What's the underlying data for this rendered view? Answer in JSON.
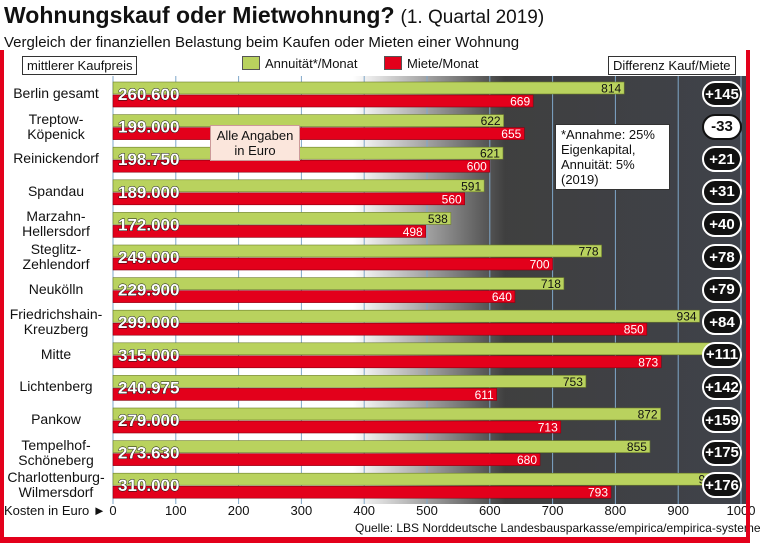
{
  "title": "Wohnungskauf oder Mietwohnung?",
  "title_period": "(1. Quartal  2019)",
  "subtitle": "Vergleich der finanziellen Belastung beim Kaufen oder Mieten einer Wohnung",
  "label_kaufpreis": "mittlerer Kaufpreis",
  "label_differenz": "Differenz Kauf/Miete",
  "note_alle": "Alle Angaben in Euro",
  "note_annahme": "*Annahme: 25% Eigenkapital, Annuität: 5% (2019)",
  "xaxis_title": "Kosten in Euro ►",
  "source": "Quelle: LBS Norddeutsche Landesbausparkasse/empirica/empirica-systeme",
  "colors": {
    "annuity": "#b9d25e",
    "rent": "#e3001b",
    "frame": "#e3001b",
    "badge": "#111111"
  },
  "chart_data": {
    "type": "bar",
    "orientation": "horizontal",
    "categories": [
      "Berlin gesamt",
      "Treptow-Köpenick",
      "Reinickendorf",
      "Spandau",
      "Marzahn-Hellersdorf",
      "Steglitz-Zehlendorf",
      "Neukölln",
      "Friedrichshain-Kreuzberg",
      "Mitte",
      "Lichtenberg",
      "Pankow",
      "Tempelhof-Schöneberg",
      "Charlottenburg-Wilmersdorf"
    ],
    "category_lines": [
      [
        "Berlin gesamt"
      ],
      [
        "Treptow-",
        "Köpenick"
      ],
      [
        "Reinickendorf"
      ],
      [
        "Spandau"
      ],
      [
        "Marzahn-",
        "Hellersdorf"
      ],
      [
        "Steglitz-",
        "Zehlendorf"
      ],
      [
        "Neukölln"
      ],
      [
        "Friedrichshain-",
        "Kreuzberg"
      ],
      [
        "Mitte"
      ],
      [
        "Lichtenberg"
      ],
      [
        "Pankow"
      ],
      [
        "Tempelhof-",
        "Schöneberg"
      ],
      [
        "Charlottenburg-",
        "Wilmersdorf"
      ]
    ],
    "series": [
      {
        "name": "Annuität*/Monat",
        "values": [
          814,
          622,
          621,
          591,
          538,
          778,
          718,
          934,
          984,
          753,
          872,
          855,
          969
        ]
      },
      {
        "name": "Miete/Monat",
        "values": [
          669,
          655,
          600,
          560,
          498,
          700,
          640,
          850,
          873,
          611,
          713,
          680,
          793
        ]
      }
    ],
    "kaufpreis": [
      "260.600",
      "199.000",
      "198.750",
      "189.000",
      "172.000",
      "249.000",
      "229.900",
      "299.000",
      "315.000",
      "240.975",
      "279.000",
      "273.630",
      "310.000"
    ],
    "differenz": [
      "+145",
      "-33",
      "+21",
      "+31",
      "+40",
      "+78",
      "+79",
      "+84",
      "+111",
      "+142",
      "+159",
      "+175",
      "+176"
    ],
    "xticks": [
      "0",
      "100",
      "200",
      "300",
      "400",
      "500",
      "600",
      "700",
      "800",
      "900",
      "1000"
    ],
    "xlim": [
      0,
      1000
    ],
    "xlabel": "Kosten in Euro",
    "grid": true,
    "legend_position": "top"
  }
}
